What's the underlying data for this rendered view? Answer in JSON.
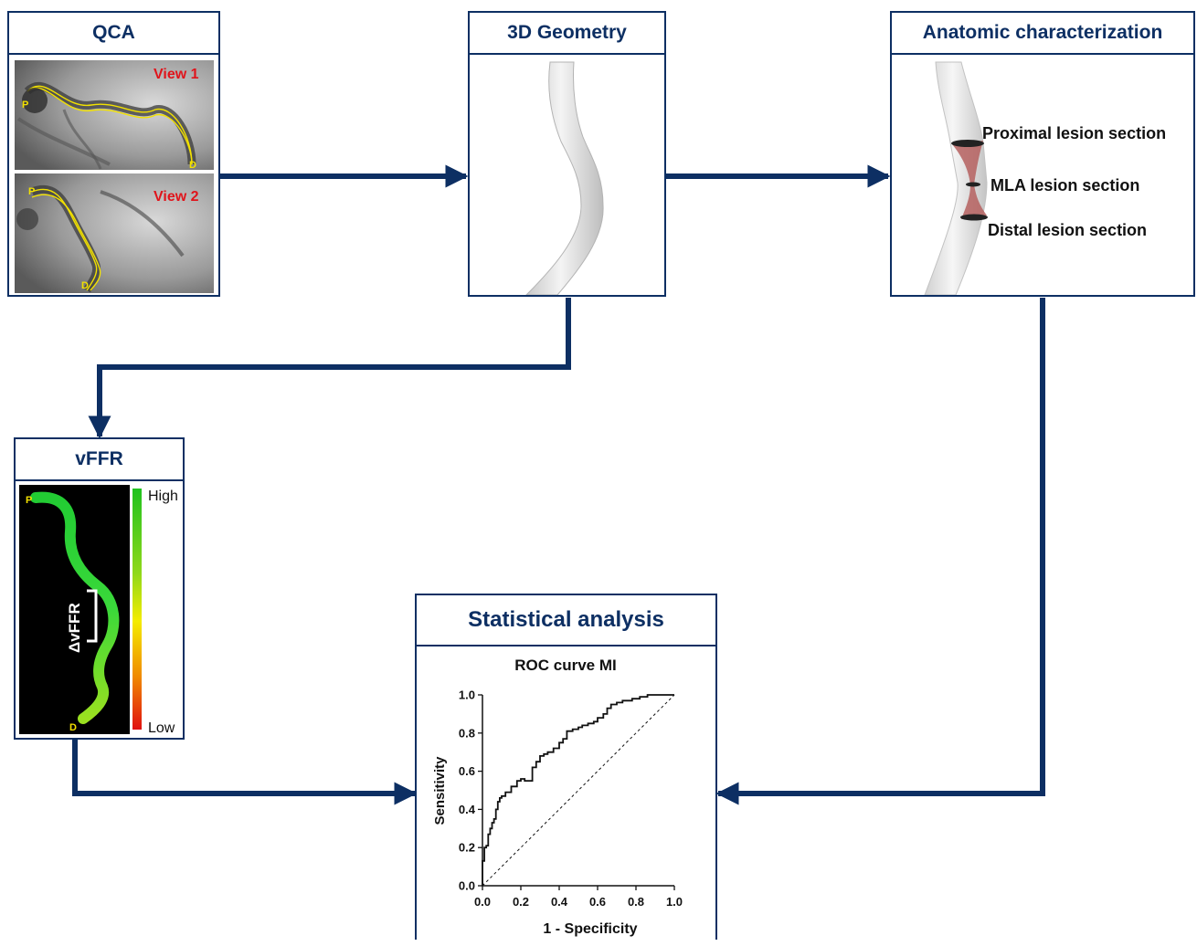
{
  "boxes": {
    "qca": {
      "title": "QCA",
      "view1": "View 1",
      "view2": "View 2",
      "p_marker": "P",
      "d_marker": "D"
    },
    "geometry": {
      "title": "3D Geometry"
    },
    "anatomic": {
      "title": "Anatomic  characterization",
      "labels": [
        "Proximal lesion section",
        "MLA lesion section",
        "Distal lesion section"
      ]
    },
    "vffr": {
      "title": "vFFR",
      "high": "High",
      "low": "Low",
      "delta": "ΔvFFR",
      "p_marker": "P",
      "d_marker": "D"
    },
    "stats": {
      "title": "Statistical analysis"
    }
  },
  "colors": {
    "frame": "#0d2f63",
    "view_label": "#e0141b",
    "marker": "#f2e100",
    "lesion": "#b5605f"
  },
  "chart_data": {
    "type": "line",
    "title": "ROC curve MI",
    "xlabel": "1 - Specificity",
    "ylabel": "Sensitivity",
    "xlim": [
      0,
      1
    ],
    "ylim": [
      0,
      1
    ],
    "xticks": [
      "0.0",
      "0.2",
      "0.4",
      "0.6",
      "0.8",
      "1.0"
    ],
    "yticks": [
      "0.0",
      "0.2",
      "0.4",
      "0.6",
      "0.8",
      "1.0"
    ],
    "grid": false,
    "series": [
      {
        "style": "solid",
        "x": [
          0.0,
          0.0,
          0.01,
          0.01,
          0.02,
          0.02,
          0.03,
          0.03,
          0.04,
          0.04,
          0.05,
          0.05,
          0.06,
          0.06,
          0.07,
          0.07,
          0.08,
          0.08,
          0.09,
          0.09,
          0.1,
          0.1,
          0.12,
          0.12,
          0.15,
          0.15,
          0.18,
          0.18,
          0.2,
          0.2,
          0.22,
          0.22,
          0.26,
          0.26,
          0.28,
          0.28,
          0.3,
          0.3,
          0.32,
          0.32,
          0.34,
          0.34,
          0.37,
          0.37,
          0.4,
          0.4,
          0.42,
          0.42,
          0.44,
          0.44,
          0.47,
          0.47,
          0.5,
          0.5,
          0.52,
          0.52,
          0.55,
          0.55,
          0.58,
          0.58,
          0.6,
          0.6,
          0.63,
          0.63,
          0.65,
          0.65,
          0.67,
          0.67,
          0.7,
          0.7,
          0.73,
          0.73,
          0.78,
          0.78,
          0.82,
          0.82,
          0.86,
          0.86,
          0.9,
          1.0
        ],
        "y": [
          0.0,
          0.13,
          0.13,
          0.2,
          0.2,
          0.21,
          0.21,
          0.27,
          0.27,
          0.3,
          0.3,
          0.33,
          0.33,
          0.35,
          0.35,
          0.4,
          0.4,
          0.44,
          0.44,
          0.46,
          0.46,
          0.47,
          0.47,
          0.49,
          0.49,
          0.52,
          0.52,
          0.55,
          0.55,
          0.56,
          0.56,
          0.55,
          0.55,
          0.62,
          0.62,
          0.65,
          0.65,
          0.68,
          0.68,
          0.69,
          0.69,
          0.7,
          0.7,
          0.72,
          0.72,
          0.75,
          0.75,
          0.77,
          0.77,
          0.81,
          0.81,
          0.82,
          0.82,
          0.83,
          0.83,
          0.84,
          0.84,
          0.85,
          0.85,
          0.86,
          0.86,
          0.88,
          0.88,
          0.9,
          0.9,
          0.93,
          0.93,
          0.95,
          0.95,
          0.96,
          0.96,
          0.97,
          0.97,
          0.98,
          0.98,
          0.99,
          0.99,
          1.0,
          1.0,
          1.0
        ]
      },
      {
        "style": "dashed",
        "x": [
          0,
          1
        ],
        "y": [
          0,
          1
        ]
      }
    ]
  }
}
